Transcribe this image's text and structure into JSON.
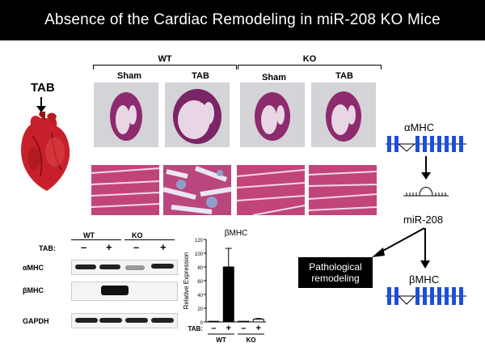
{
  "title": "Absence of the Cardiac Remodeling in miR-208 KO Mice",
  "heart_label": "TAB",
  "groups": {
    "wt": "WT",
    "ko": "KO"
  },
  "columns": [
    "Sham",
    "TAB",
    "Sham",
    "TAB"
  ],
  "pathway": {
    "alpha_mhc": "αMHC",
    "mir": "miR-208",
    "beta_mhc": "βMHC",
    "outcome": "Pathological remodeling"
  },
  "blot": {
    "group_wt": "WT",
    "group_ko": "KO",
    "tab_label": "TAB:",
    "signs": [
      "–",
      "+",
      "–",
      "+"
    ],
    "rows": [
      "αMHC",
      "βMHC",
      "GAPDH"
    ]
  },
  "chart_data": {
    "type": "bar",
    "title": "βMHC",
    "ylabel": "Relative Expression",
    "ylim": [
      0,
      120
    ],
    "yticks": [
      0,
      20,
      40,
      60,
      80,
      100,
      120
    ],
    "categories": [
      "WT –",
      "WT +",
      "KO –",
      "KO +"
    ],
    "values": [
      1,
      80,
      1,
      4
    ],
    "errors": [
      0,
      27,
      0,
      1
    ],
    "fill_colors": [
      "#000000",
      "#000000",
      "#ffffff",
      "#ffffff"
    ],
    "x_row_label": "TAB:",
    "x_signs": [
      "–",
      "+",
      "–",
      "+"
    ],
    "x_groups": [
      "WT",
      "KO"
    ]
  }
}
